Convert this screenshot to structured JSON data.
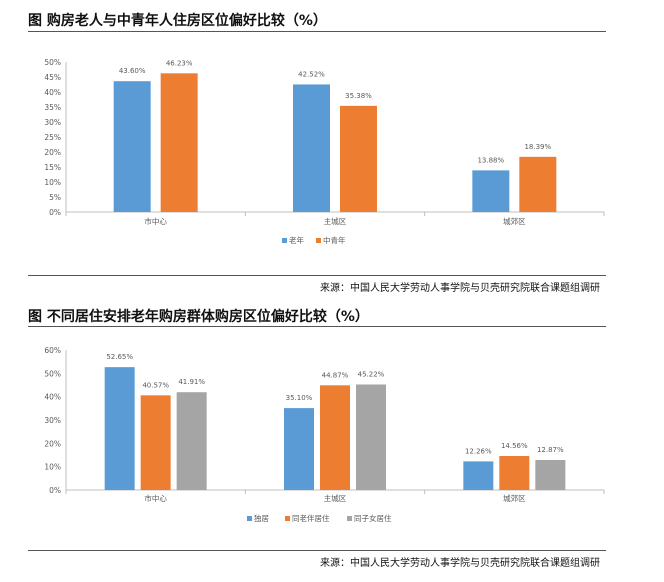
{
  "charts": [
    {
      "title": "图  购房老人与中青年人住房区位偏好比较（%）",
      "source": "来源：中国人民大学劳动人事学院与贝壳研究院联合课题组调研"
    },
    {
      "title": "图  不同居住安排老年购房群体购房区位偏好比较（%）",
      "source": "来源：中国人民大学劳动人事学院与贝壳研究院联合课题组调研"
    }
  ],
  "chart_data": [
    {
      "type": "bar",
      "title": "图  购房老人与中青年人住房区位偏好比较（%）",
      "categories": [
        "市中心",
        "主城区",
        "城郊区"
      ],
      "series": [
        {
          "name": "老年",
          "color": "#5B9BD5",
          "values": [
            43.6,
            42.52,
            13.88
          ],
          "labels": [
            "43.60%",
            "42.52%",
            "13.88%"
          ]
        },
        {
          "name": "中青年",
          "color": "#ED7D31",
          "values": [
            46.23,
            35.38,
            18.39
          ],
          "labels": [
            "46.23%",
            "35.38%",
            "18.39%"
          ]
        }
      ],
      "ylim": [
        0,
        50
      ],
      "yticks": [
        "0%",
        "5%",
        "10%",
        "15%",
        "20%",
        "25%",
        "30%",
        "35%",
        "40%",
        "45%",
        "50%"
      ],
      "legend_position": "bottom",
      "grid": false
    },
    {
      "type": "bar",
      "title": "图  不同居住安排老年购房群体购房区位偏好比较（%）",
      "categories": [
        "市中心",
        "主城区",
        "城郊区"
      ],
      "series": [
        {
          "name": "独居",
          "color": "#5B9BD5",
          "values": [
            52.65,
            35.1,
            12.26
          ],
          "labels": [
            "52.65%",
            "35.10%",
            "12.26%"
          ]
        },
        {
          "name": "同老伴居住",
          "color": "#ED7D31",
          "values": [
            40.57,
            44.87,
            14.56
          ],
          "labels": [
            "40.57%",
            "44.87%",
            "14.56%"
          ]
        },
        {
          "name": "同子女居住",
          "color": "#A5A5A5",
          "values": [
            41.91,
            45.22,
            12.87
          ],
          "labels": [
            "41.91%",
            "45.22%",
            "12.87%"
          ]
        }
      ],
      "ylim": [
        0,
        60
      ],
      "yticks": [
        "0%",
        "10%",
        "20%",
        "30%",
        "40%",
        "50%",
        "60%"
      ],
      "legend_position": "bottom",
      "grid": false
    }
  ]
}
